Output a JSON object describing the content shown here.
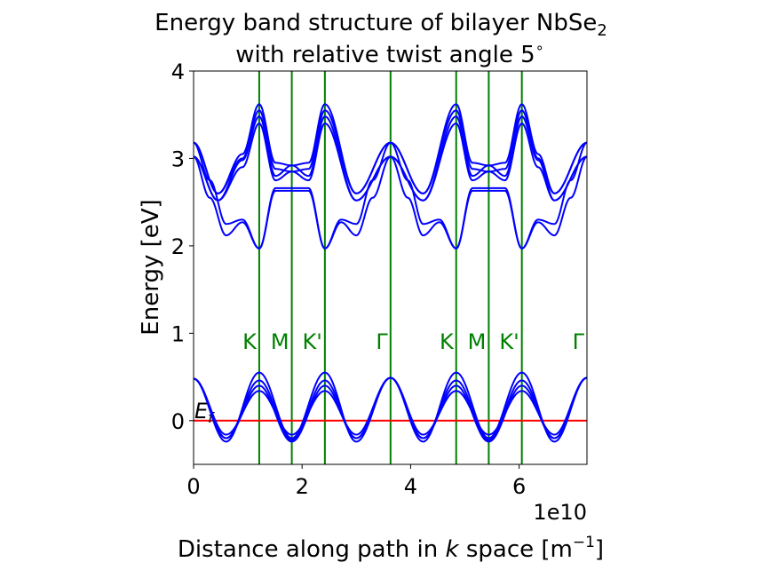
{
  "chart_data": {
    "type": "line",
    "title_line1": "Energy band structure of bilayer NbSe",
    "title_line1_sub": "2",
    "title_line2": "with relative twist angle 5",
    "title_line2_sup": "∘",
    "xlabel_pre": "Distance along path in ",
    "xlabel_k": "k",
    "xlabel_post": " space [m",
    "xlabel_sup": "−1",
    "xlabel_close": "]",
    "ylabel": "Energy [eV]",
    "x_offset_text": "1e10",
    "xlim": [
      0,
      7.25
    ],
    "ylim": [
      -0.5,
      4
    ],
    "xticks": [
      {
        "value": 0,
        "label": "0"
      },
      {
        "value": 2,
        "label": "2"
      },
      {
        "value": 4,
        "label": "4"
      },
      {
        "value": 6,
        "label": "6"
      }
    ],
    "yticks": [
      {
        "value": 0,
        "label": "0"
      },
      {
        "value": 1,
        "label": "1"
      },
      {
        "value": 2,
        "label": "2"
      },
      {
        "value": 3,
        "label": "3"
      },
      {
        "value": 4,
        "label": "4"
      }
    ],
    "k_points": [
      {
        "x": 1.21,
        "label": "K"
      },
      {
        "x": 1.81,
        "label": "M"
      },
      {
        "x": 2.42,
        "label": "K'"
      },
      {
        "x": 3.63,
        "label": "Γ"
      },
      {
        "x": 4.84,
        "label": "K"
      },
      {
        "x": 5.44,
        "label": "M"
      },
      {
        "x": 6.05,
        "label": "K'"
      },
      {
        "x": 7.25,
        "label": "Γ"
      }
    ],
    "fermi_level": {
      "value": 0,
      "label": "E",
      "label_sub": "f"
    },
    "colors": {
      "bands": "#0000ff",
      "k_lines": "#008000",
      "fermi": "#ff0000",
      "axes": "#000000"
    },
    "series": [
      {
        "x": [
          0,
          0.6,
          1.21,
          1.81,
          2.42,
          3.0,
          3.63,
          4.23,
          4.84,
          5.44,
          6.05,
          6.65,
          7.25
        ],
        "values": [
          0.48,
          -0.24,
          0.55,
          -0.2,
          0.55,
          -0.24,
          0.49,
          -0.24,
          0.55,
          -0.2,
          0.55,
          -0.24,
          0.49
        ]
      },
      {
        "x": [
          0,
          0.6,
          1.21,
          1.81,
          2.42,
          3.0,
          3.63,
          4.23,
          4.84,
          5.44,
          6.05,
          6.65,
          7.25
        ],
        "values": [
          0.48,
          -0.2,
          0.46,
          -0.22,
          0.46,
          -0.2,
          0.49,
          -0.2,
          0.46,
          -0.22,
          0.46,
          -0.2,
          0.49
        ]
      },
      {
        "x": [
          0,
          0.6,
          1.21,
          1.81,
          2.42,
          3.0,
          3.63,
          4.23,
          4.84,
          5.44,
          6.05,
          6.65,
          7.25
        ],
        "values": [
          0.48,
          -0.2,
          0.4,
          -0.24,
          0.4,
          -0.2,
          0.49,
          -0.2,
          0.4,
          -0.24,
          0.4,
          -0.2,
          0.49
        ]
      },
      {
        "x": [
          0,
          0.6,
          1.21,
          1.81,
          2.42,
          3.0,
          3.63,
          4.23,
          4.84,
          5.44,
          6.05,
          6.65,
          7.25
        ],
        "values": [
          0.48,
          -0.16,
          0.34,
          -0.16,
          0.34,
          -0.16,
          0.49,
          -0.16,
          0.34,
          -0.16,
          0.34,
          -0.16,
          0.49
        ]
      },
      {
        "x": [
          0,
          0.45,
          0.9,
          1.21,
          1.51,
          1.81,
          2.12,
          2.42,
          3.0,
          3.63,
          4.23,
          4.84,
          5.14,
          5.44,
          5.74,
          6.05,
          6.35,
          6.65,
          7.25
        ],
        "values": [
          3.18,
          2.6,
          3.05,
          3.62,
          2.95,
          2.92,
          2.95,
          3.62,
          2.6,
          3.18,
          2.6,
          3.62,
          2.95,
          2.92,
          2.95,
          3.62,
          3.05,
          2.6,
          3.18
        ]
      },
      {
        "x": [
          0,
          0.45,
          0.9,
          1.21,
          1.51,
          1.81,
          2.12,
          2.42,
          3.0,
          3.63,
          4.23,
          4.84,
          5.14,
          5.44,
          5.74,
          6.05,
          6.35,
          6.65,
          7.25
        ],
        "values": [
          3.18,
          2.6,
          3.0,
          3.55,
          2.88,
          2.85,
          2.88,
          3.55,
          2.6,
          3.18,
          2.6,
          3.55,
          2.88,
          2.85,
          2.88,
          3.55,
          3.0,
          2.6,
          3.18
        ]
      },
      {
        "x": [
          0,
          0.45,
          0.9,
          1.21,
          1.51,
          1.81,
          2.12,
          2.42,
          3.0,
          3.63,
          4.23,
          4.84,
          5.14,
          5.44,
          5.74,
          6.05,
          6.35,
          6.65,
          7.25
        ],
        "values": [
          3.02,
          2.52,
          2.98,
          3.48,
          2.8,
          2.92,
          2.8,
          3.48,
          2.52,
          3.02,
          2.52,
          3.48,
          2.8,
          2.92,
          2.8,
          3.48,
          2.98,
          2.52,
          3.02
        ]
      },
      {
        "x": [
          0,
          0.45,
          0.9,
          1.21,
          1.51,
          1.81,
          2.12,
          2.42,
          3.0,
          3.63,
          4.23,
          4.84,
          5.14,
          5.44,
          5.74,
          6.05,
          6.35,
          6.65,
          7.25
        ],
        "values": [
          3.02,
          2.52,
          2.9,
          3.4,
          2.75,
          2.85,
          2.75,
          3.4,
          2.52,
          3.02,
          2.52,
          3.4,
          2.75,
          2.85,
          2.75,
          3.4,
          2.9,
          2.52,
          3.02
        ]
      },
      {
        "x": [
          0,
          0.3,
          0.6,
          0.9,
          1.21,
          1.51,
          1.81,
          2.12,
          2.42,
          2.72,
          3.0,
          3.3,
          3.63,
          3.95,
          4.23,
          4.53,
          4.84,
          5.14,
          5.44,
          5.74,
          6.05,
          6.35,
          6.65,
          6.95,
          7.25
        ],
        "values": [
          3.18,
          2.75,
          2.25,
          2.3,
          1.97,
          2.66,
          2.66,
          2.66,
          1.97,
          2.3,
          2.25,
          2.75,
          3.18,
          2.75,
          2.25,
          2.3,
          1.97,
          2.66,
          2.66,
          2.66,
          1.97,
          2.3,
          2.25,
          2.75,
          3.18
        ]
      },
      {
        "x": [
          0,
          0.3,
          0.6,
          0.9,
          1.21,
          1.51,
          1.81,
          2.12,
          2.42,
          2.72,
          3.0,
          3.3,
          3.63,
          3.95,
          4.23,
          4.53,
          4.84,
          5.14,
          5.44,
          5.74,
          6.05,
          6.35,
          6.65,
          6.95,
          7.25
        ],
        "values": [
          3.02,
          2.55,
          2.12,
          2.27,
          1.97,
          2.63,
          2.63,
          2.63,
          1.97,
          2.27,
          2.12,
          2.55,
          3.02,
          2.55,
          2.12,
          2.27,
          1.97,
          2.63,
          2.63,
          2.63,
          1.97,
          2.27,
          2.12,
          2.55,
          3.02
        ]
      }
    ]
  }
}
